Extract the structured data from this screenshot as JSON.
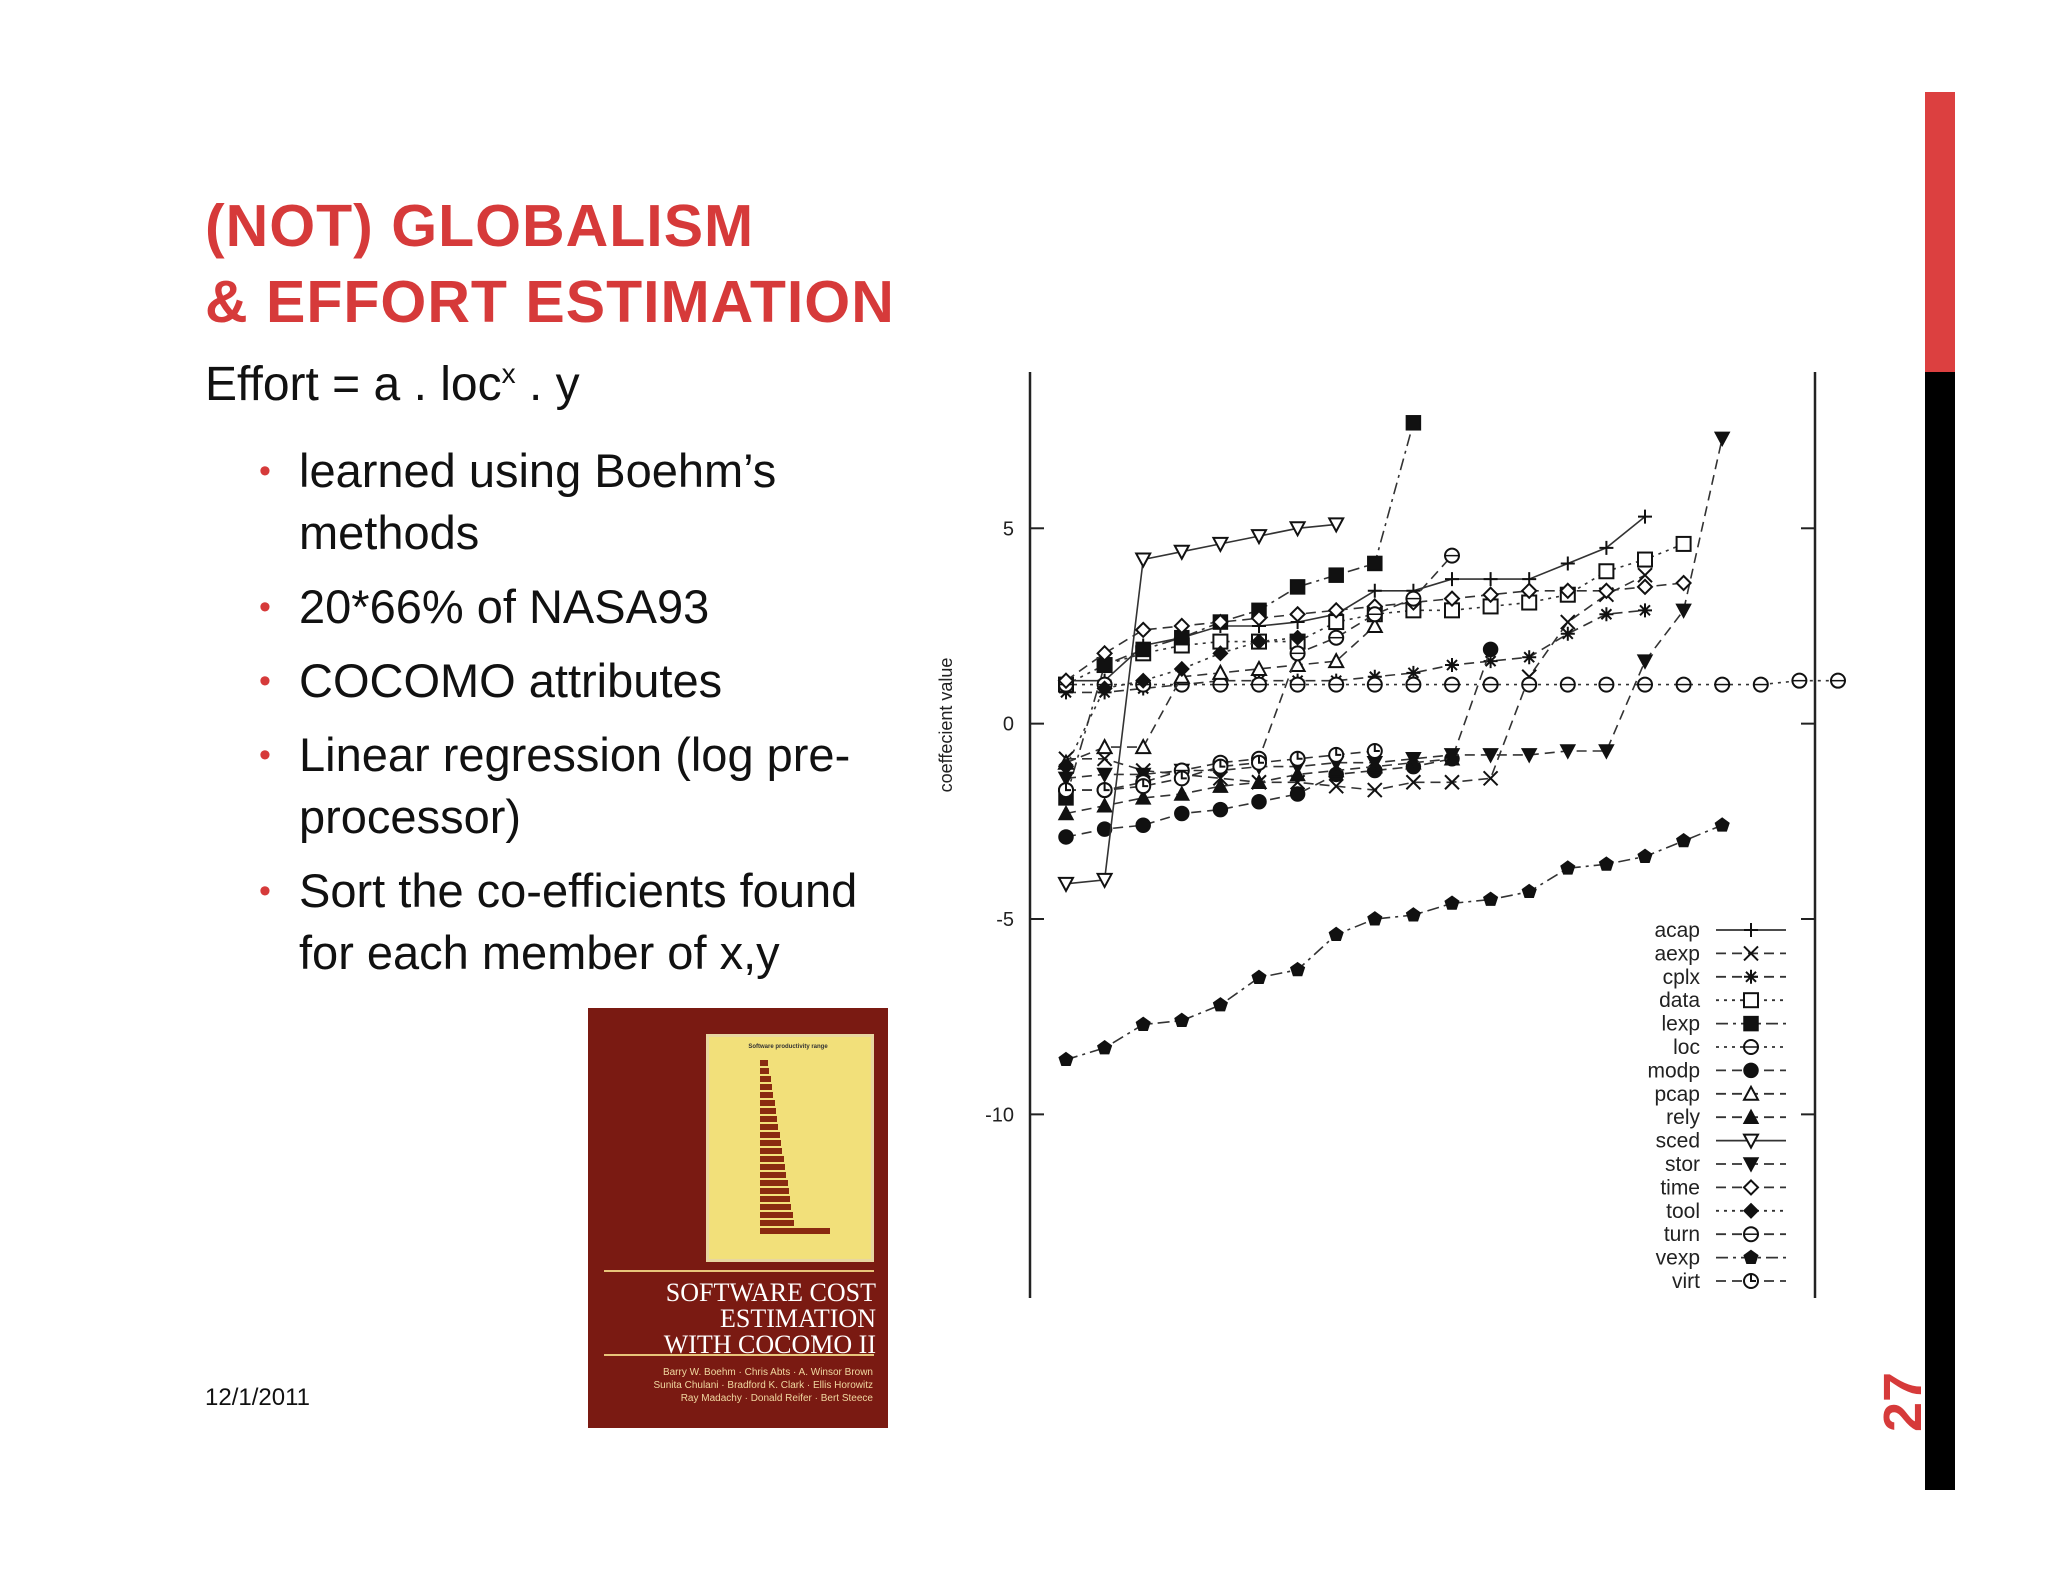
{
  "slide": {
    "title_line1": "(NOT) GLOBALISM",
    "title_line2": "& EFFORT ESTIMATION",
    "formula_prefix": "Effort = a . loc",
    "formula_sup": "x",
    "formula_suffix": " . y",
    "bullets": [
      "learned using Boehm’s methods",
      "20*66% of NASA93",
      "COCOMO attributes",
      "Linear regression (log pre-processor)",
      "Sort the co-efficients found for each member of x,y"
    ],
    "date": "12/1/2011",
    "page_number": "27",
    "accent_color": "#d63a3a"
  },
  "book": {
    "title_lines": [
      "SOFTWARE COST",
      "ESTIMATION",
      "WITH COCOMO II"
    ],
    "authors": [
      "Barry W. Boehm · Chris Abts · A. Winsor Brown",
      "Sunita Chulani · Bradford K. Clark · Ellis Horowitz",
      "Ray Madachy · Donald Reifer · Bert Steece"
    ],
    "cover_chart_title": "Software productivity range",
    "color": "#7a1a12"
  },
  "chart_data": {
    "type": "line",
    "ylabel": "coeffecient value",
    "xlabel": "",
    "ylim": [
      -14.7,
      9
    ],
    "yticks": [
      5,
      0,
      -5,
      -10
    ],
    "legend_position": "bottom-right",
    "grid": false,
    "series": [
      {
        "name": "acap",
        "line": "solid",
        "marker": "plus",
        "values": [
          1.1,
          1.1,
          2,
          2.2,
          2.5,
          2.5,
          2.6,
          2.8,
          3.4,
          3.4,
          3.7,
          3.7,
          3.7,
          4.1,
          4.5,
          5.3
        ]
      },
      {
        "name": "aexp",
        "line": "dashed",
        "marker": "x",
        "values": [
          -0.9,
          -0.9,
          -1.2,
          -1.3,
          -1.4,
          -1.5,
          -1.5,
          -1.6,
          -1.7,
          -1.5,
          -1.5,
          -1.4,
          1.2,
          2.6,
          3.3,
          3.8
        ]
      },
      {
        "name": "cplx",
        "line": "dashed",
        "marker": "asterisk",
        "values": [
          0.8,
          0.8,
          0.9,
          1,
          1.1,
          1.1,
          1.1,
          1.1,
          1.2,
          1.3,
          1.5,
          1.6,
          1.7,
          2.3,
          2.8,
          2.9
        ]
      },
      {
        "name": "data",
        "line": "dotted",
        "marker": "square-open",
        "values": [
          1,
          1.5,
          1.8,
          2,
          2.1,
          2.1,
          2.1,
          2.6,
          2.8,
          2.9,
          2.9,
          3.0,
          3.1,
          3.3,
          3.9,
          4.2,
          4.6
        ]
      },
      {
        "name": "lexp",
        "line": "dashdot",
        "marker": "square-filled",
        "values": [
          -1.9,
          1.5,
          1.9,
          2.2,
          2.6,
          2.9,
          3.5,
          3.8,
          4.1,
          7.7
        ]
      },
      {
        "name": "loc",
        "line": "dotted",
        "marker": "circle-bar",
        "values": [
          1,
          1,
          1,
          1,
          1,
          1,
          1,
          1,
          1,
          1,
          1,
          1,
          1,
          1,
          1,
          1,
          1,
          1,
          1,
          1.1,
          1.1
        ]
      },
      {
        "name": "modp",
        "line": "dashed",
        "marker": "circle-filled",
        "values": [
          -2.9,
          -2.7,
          -2.6,
          -2.3,
          -2.2,
          -2,
          -1.8,
          -1.3,
          -1.2,
          -1.1,
          -0.9,
          1.9
        ]
      },
      {
        "name": "pcap",
        "line": "dashed",
        "marker": "triangle-open",
        "values": [
          -1,
          -0.6,
          -0.6,
          1.2,
          1.3,
          1.4,
          1.5,
          1.6,
          2.5
        ]
      },
      {
        "name": "rely",
        "line": "dashed",
        "marker": "triangle-filled",
        "values": [
          -2.3,
          -2.1,
          -1.9,
          -1.8,
          -1.6,
          -1.5,
          -1.3,
          -1.2,
          -1.1,
          -1.0,
          -0.9
        ]
      },
      {
        "name": "sced",
        "line": "solid",
        "marker": "triangle-down-open",
        "values": [
          -4.1,
          -4,
          4.2,
          4.4,
          4.6,
          4.8,
          5,
          5.1
        ]
      },
      {
        "name": "stor",
        "line": "dashed",
        "marker": "triangle-down-filled",
        "values": [
          -1.4,
          -1.3,
          -1.3,
          -1.2,
          -1.2,
          -1.1,
          -1.1,
          -1,
          -1,
          -0.9,
          -0.8,
          -0.8,
          -0.8,
          -0.7,
          -0.7,
          1.6,
          2.9,
          7.3
        ]
      },
      {
        "name": "time",
        "line": "dashed",
        "marker": "diamond-open",
        "values": [
          1.1,
          1.8,
          2.4,
          2.5,
          2.6,
          2.7,
          2.8,
          2.9,
          3,
          3.1,
          3.2,
          3.3,
          3.4,
          3.4,
          3.4,
          3.5,
          3.6
        ]
      },
      {
        "name": "tool",
        "line": "dotted",
        "marker": "diamond-filled",
        "values": [
          -1.1,
          0.9,
          1.1,
          1.4,
          1.8,
          2.1,
          2.2
        ]
      },
      {
        "name": "turn",
        "line": "dashed",
        "marker": "circle-bar",
        "values": [
          -1.7,
          -1.7,
          -1.5,
          -1.2,
          -1,
          -0.9,
          1.8,
          2.2,
          2.8,
          3.2,
          4.3
        ]
      },
      {
        "name": "vexp",
        "line": "dashdot",
        "marker": "pentagon-filled",
        "values": [
          -8.6,
          -8.3,
          -7.7,
          -7.6,
          -7.2,
          -6.5,
          -6.3,
          -5.4,
          -5,
          -4.9,
          -4.6,
          -4.5,
          -4.3,
          -3.7,
          -3.6,
          -3.4,
          -3,
          -2.6
        ]
      },
      {
        "name": "virt",
        "line": "dashed",
        "marker": "clock",
        "values": [
          -1.7,
          -1.7,
          -1.6,
          -1.4,
          -1.1,
          -1,
          -0.9,
          -0.8,
          -0.7
        ]
      }
    ]
  }
}
